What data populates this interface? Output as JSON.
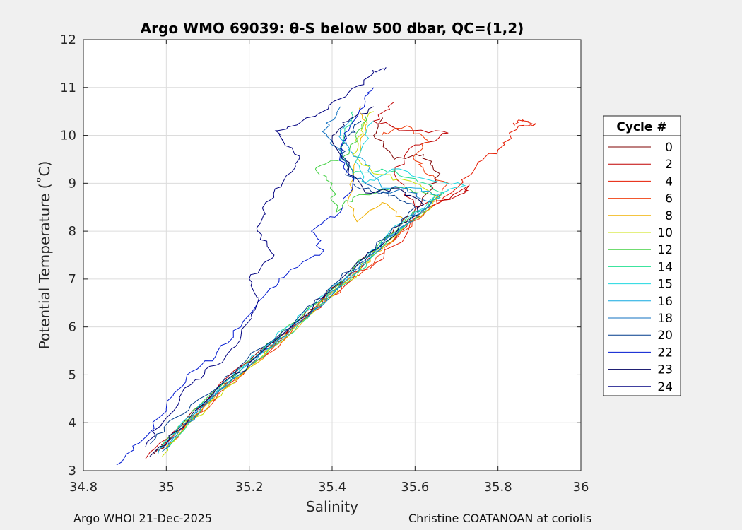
{
  "chart_data": {
    "type": "line",
    "title": "Argo WMO 69039: θ-S below 500 dbar,  QC=(1,2)",
    "xlabel": "Salinity",
    "ylabel": "Potential Temperature (˚C)",
    "xlim": [
      34.8,
      36
    ],
    "ylim": [
      3,
      12
    ],
    "xticks": [
      "34.8",
      "35",
      "35.2",
      "35.4",
      "35.6",
      "35.8",
      "36"
    ],
    "yticks": [
      "3",
      "4",
      "5",
      "6",
      "7",
      "8",
      "9",
      "10",
      "11",
      "12"
    ],
    "grid": true,
    "legend": {
      "title": "Cycle #",
      "placement": "outside-right"
    },
    "series": [
      {
        "name": "0",
        "color": "#7f0000",
        "points": [
          [
            34.97,
            3.35
          ],
          [
            35.02,
            3.8
          ],
          [
            35.1,
            4.5
          ],
          [
            35.2,
            5.3
          ],
          [
            35.3,
            6.0
          ],
          [
            35.38,
            6.6
          ],
          [
            35.45,
            7.2
          ],
          [
            35.52,
            7.8
          ],
          [
            35.58,
            8.3
          ],
          [
            35.63,
            8.8
          ],
          [
            35.66,
            9.2
          ],
          [
            35.62,
            9.6
          ],
          [
            35.55,
            9.5
          ],
          [
            35.5,
            10.0
          ],
          [
            35.52,
            10.4
          ]
        ]
      },
      {
        "name": "2",
        "color": "#c00000",
        "points": [
          [
            34.95,
            3.25
          ],
          [
            35.03,
            3.9
          ],
          [
            35.12,
            4.7
          ],
          [
            35.22,
            5.4
          ],
          [
            35.32,
            6.1
          ],
          [
            35.42,
            6.9
          ],
          [
            35.5,
            7.5
          ],
          [
            35.58,
            8.1
          ],
          [
            35.66,
            8.6
          ],
          [
            35.73,
            8.95
          ],
          [
            35.72,
            8.8
          ],
          [
            35.6,
            8.5
          ],
          [
            35.55,
            9.2
          ],
          [
            35.6,
            9.8
          ],
          [
            35.68,
            10.05
          ],
          [
            35.58,
            10.1
          ],
          [
            35.5,
            10.3
          ],
          [
            35.55,
            10.7
          ]
        ]
      },
      {
        "name": "4",
        "color": "#e61a00",
        "points": [
          [
            34.98,
            3.4
          ],
          [
            35.05,
            4.0
          ],
          [
            35.15,
            4.8
          ],
          [
            35.25,
            5.5
          ],
          [
            35.35,
            6.3
          ],
          [
            35.45,
            7.0
          ],
          [
            35.55,
            7.7
          ],
          [
            35.62,
            8.4
          ],
          [
            35.7,
            8.9
          ],
          [
            35.75,
            9.4
          ],
          [
            35.8,
            9.7
          ],
          [
            35.85,
            10.2
          ],
          [
            35.89,
            10.25
          ],
          [
            35.86,
            10.3
          ],
          [
            35.84,
            10.2
          ]
        ]
      },
      {
        "name": "6",
        "color": "#f04010",
        "points": [
          [
            35.0,
            3.45
          ],
          [
            35.08,
            4.2
          ],
          [
            35.18,
            5.0
          ],
          [
            35.28,
            5.7
          ],
          [
            35.38,
            6.5
          ],
          [
            35.48,
            7.2
          ],
          [
            35.56,
            7.9
          ],
          [
            35.64,
            8.5
          ],
          [
            35.68,
            9.0
          ],
          [
            35.62,
            9.3
          ],
          [
            35.6,
            9.6
          ],
          [
            35.63,
            9.9
          ],
          [
            35.58,
            10.2
          ],
          [
            35.52,
            10.0
          ]
        ]
      },
      {
        "name": "8",
        "color": "#f0b000",
        "points": [
          [
            35.0,
            3.5
          ],
          [
            35.06,
            4.1
          ],
          [
            35.16,
            4.9
          ],
          [
            35.26,
            5.6
          ],
          [
            35.36,
            6.4
          ],
          [
            35.45,
            7.1
          ],
          [
            35.52,
            7.6
          ],
          [
            35.58,
            8.2
          ],
          [
            35.52,
            8.6
          ],
          [
            35.46,
            8.2
          ],
          [
            35.44,
            8.7
          ],
          [
            35.46,
            9.5
          ],
          [
            35.48,
            10.2
          ],
          [
            35.47,
            10.6
          ]
        ]
      },
      {
        "name": "10",
        "color": "#c8e000",
        "points": [
          [
            34.99,
            3.3
          ],
          [
            35.05,
            3.95
          ],
          [
            35.14,
            4.7
          ],
          [
            35.24,
            5.45
          ],
          [
            35.34,
            6.2
          ],
          [
            35.44,
            6.95
          ],
          [
            35.52,
            7.65
          ],
          [
            35.6,
            8.25
          ],
          [
            35.66,
            8.7
          ],
          [
            35.6,
            9.0
          ],
          [
            35.5,
            9.2
          ],
          [
            35.45,
            9.6
          ],
          [
            35.47,
            10.1
          ],
          [
            35.5,
            10.5
          ]
        ]
      },
      {
        "name": "12",
        "color": "#40d040",
        "points": [
          [
            34.98,
            3.4
          ],
          [
            35.04,
            4.0
          ],
          [
            35.13,
            4.75
          ],
          [
            35.23,
            5.5
          ],
          [
            35.33,
            6.25
          ],
          [
            35.43,
            7.0
          ],
          [
            35.51,
            7.7
          ],
          [
            35.59,
            8.3
          ],
          [
            35.65,
            8.75
          ],
          [
            35.55,
            8.9
          ],
          [
            35.45,
            8.7
          ],
          [
            35.41,
            8.4
          ],
          [
            35.4,
            9.0
          ],
          [
            35.36,
            9.3
          ],
          [
            35.42,
            9.5
          ],
          [
            35.46,
            9.9
          ],
          [
            35.48,
            10.4
          ]
        ]
      },
      {
        "name": "14",
        "color": "#20e090",
        "points": [
          [
            35.0,
            3.45
          ],
          [
            35.06,
            4.05
          ],
          [
            35.15,
            4.8
          ],
          [
            35.25,
            5.55
          ],
          [
            35.35,
            6.3
          ],
          [
            35.45,
            7.05
          ],
          [
            35.53,
            7.75
          ],
          [
            35.61,
            8.35
          ],
          [
            35.67,
            8.8
          ],
          [
            35.6,
            9.1
          ],
          [
            35.52,
            9.3
          ],
          [
            35.45,
            9.2
          ],
          [
            35.42,
            9.7
          ],
          [
            35.44,
            10.2
          ],
          [
            35.45,
            10.5
          ]
        ]
      },
      {
        "name": "15",
        "color": "#20d8e0",
        "points": [
          [
            34.99,
            3.5
          ],
          [
            35.05,
            4.1
          ],
          [
            35.14,
            4.85
          ],
          [
            35.24,
            5.6
          ],
          [
            35.34,
            6.35
          ],
          [
            35.44,
            7.1
          ],
          [
            35.52,
            7.8
          ],
          [
            35.6,
            8.4
          ],
          [
            35.68,
            8.85
          ],
          [
            35.72,
            8.95
          ],
          [
            35.62,
            9.1
          ],
          [
            35.55,
            9.3
          ],
          [
            35.48,
            9.0
          ],
          [
            35.46,
            9.5
          ],
          [
            35.5,
            10.3
          ]
        ]
      },
      {
        "name": "16",
        "color": "#10a8e0",
        "points": [
          [
            34.98,
            3.35
          ],
          [
            35.04,
            3.95
          ],
          [
            35.13,
            4.7
          ],
          [
            35.23,
            5.45
          ],
          [
            35.33,
            6.2
          ],
          [
            35.43,
            6.95
          ],
          [
            35.51,
            7.65
          ],
          [
            35.59,
            8.25
          ],
          [
            35.66,
            8.7
          ],
          [
            35.6,
            8.9
          ],
          [
            35.52,
            8.9
          ],
          [
            35.48,
            9.4
          ],
          [
            35.44,
            9.7
          ],
          [
            35.42,
            10.0
          ],
          [
            35.45,
            10.4
          ]
        ]
      },
      {
        "name": "18",
        "color": "#1070c0",
        "points": [
          [
            34.99,
            3.4
          ],
          [
            35.05,
            4.0
          ],
          [
            35.12,
            4.6
          ],
          [
            35.22,
            5.35
          ],
          [
            35.32,
            6.1
          ],
          [
            35.42,
            6.85
          ],
          [
            35.5,
            7.55
          ],
          [
            35.58,
            8.15
          ],
          [
            35.64,
            8.6
          ],
          [
            35.58,
            8.9
          ],
          [
            35.52,
            8.8
          ],
          [
            35.45,
            9.2
          ],
          [
            35.4,
            9.8
          ],
          [
            35.38,
            10.1
          ],
          [
            35.42,
            10.6
          ]
        ]
      },
      {
        "name": "20",
        "color": "#003a8c",
        "points": [
          [
            34.96,
            3.55
          ],
          [
            35.02,
            4.1
          ],
          [
            35.08,
            4.5
          ],
          [
            35.18,
            5.2
          ],
          [
            35.28,
            5.9
          ],
          [
            35.38,
            6.65
          ],
          [
            35.46,
            7.3
          ],
          [
            35.54,
            7.95
          ],
          [
            35.6,
            8.5
          ],
          [
            35.55,
            8.75
          ],
          [
            35.5,
            8.8
          ],
          [
            35.45,
            9.0
          ],
          [
            35.42,
            9.6
          ],
          [
            35.44,
            10.0
          ],
          [
            35.47,
            10.3
          ]
        ]
      },
      {
        "name": "22",
        "color": "#0018d0",
        "points": [
          [
            34.88,
            3.12
          ],
          [
            34.95,
            3.7
          ],
          [
            35.0,
            4.3
          ],
          [
            35.05,
            5.0
          ],
          [
            35.12,
            5.4
          ],
          [
            35.18,
            6.0
          ],
          [
            35.25,
            6.8
          ],
          [
            35.3,
            7.2
          ],
          [
            35.38,
            7.6
          ],
          [
            35.35,
            8.0
          ],
          [
            35.42,
            8.4
          ],
          [
            35.45,
            9.0
          ],
          [
            35.42,
            9.6
          ],
          [
            35.44,
            10.1
          ],
          [
            35.48,
            10.7
          ],
          [
            35.5,
            11.0
          ]
        ]
      },
      {
        "name": "23",
        "color": "#000060",
        "points": [
          [
            34.96,
            3.3
          ],
          [
            35.02,
            3.8
          ],
          [
            35.1,
            4.5
          ],
          [
            35.2,
            5.25
          ],
          [
            35.3,
            6.0
          ],
          [
            35.4,
            6.8
          ],
          [
            35.48,
            7.45
          ],
          [
            35.56,
            8.05
          ],
          [
            35.62,
            8.55
          ],
          [
            35.56,
            8.9
          ],
          [
            35.48,
            8.8
          ],
          [
            35.44,
            9.3
          ],
          [
            35.4,
            9.9
          ],
          [
            35.44,
            10.3
          ],
          [
            35.5,
            10.6
          ]
        ]
      },
      {
        "name": "24",
        "color": "#000080",
        "points": [
          [
            34.95,
            3.5
          ],
          [
            35.0,
            4.1
          ],
          [
            35.06,
            4.8
          ],
          [
            35.12,
            5.2
          ],
          [
            35.18,
            5.8
          ],
          [
            35.22,
            6.5
          ],
          [
            35.2,
            7.0
          ],
          [
            35.26,
            7.5
          ],
          [
            35.22,
            8.0
          ],
          [
            35.24,
            8.6
          ],
          [
            35.28,
            9.0
          ],
          [
            35.32,
            9.5
          ],
          [
            35.28,
            9.9
          ],
          [
            35.27,
            10.1
          ],
          [
            35.36,
            10.4
          ],
          [
            35.44,
            10.9
          ],
          [
            35.5,
            11.3
          ],
          [
            35.53,
            11.42
          ]
        ]
      }
    ]
  },
  "footer": {
    "left": "Argo WHOI 21-Dec-2025",
    "right": "Christine COATANOAN at coriolis"
  }
}
